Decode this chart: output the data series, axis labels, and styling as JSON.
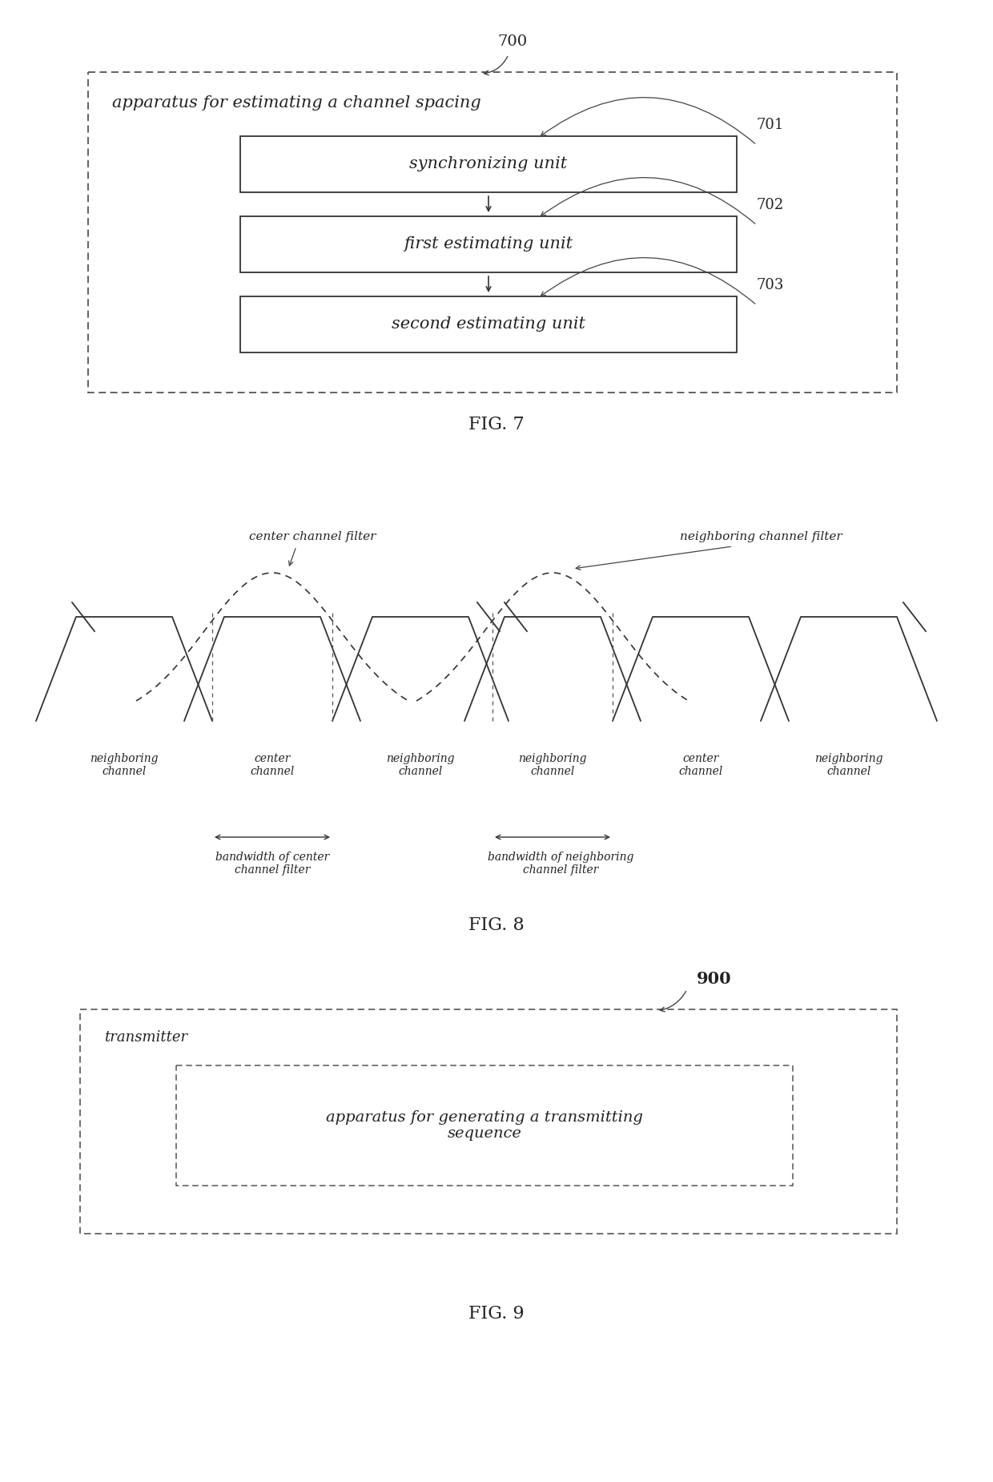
{
  "bg_color": "#ffffff",
  "fig7": {
    "outer_label": "apparatus for estimating a channel spacing",
    "boxes": [
      {
        "label": "synchronizing unit",
        "num": "701"
      },
      {
        "label": "first estimating unit",
        "num": "702"
      },
      {
        "label": "second estimating unit",
        "num": "703"
      }
    ],
    "label": "700",
    "fig_label": "FIG. 7"
  },
  "fig8": {
    "fig_label": "FIG. 8",
    "left_labels": [
      "neighboring\nchannel",
      "center\nchannel",
      "neighboring\nchannel"
    ],
    "right_labels": [
      "neighboring\nchannel",
      "center\nchannel",
      "neighboring\nchannel"
    ],
    "left_bw_label": "bandwidth of center\nchannel filter",
    "right_bw_label": "bandwidth of neighboring\nchannel filter",
    "center_filter_label": "center channel filter",
    "neighbor_filter_label": "neighboring channel filter"
  },
  "fig9": {
    "label": "900",
    "outer_label": "transmitter",
    "inner_label": "apparatus for generating a transmitting\nsequence",
    "fig_label": "FIG. 9"
  }
}
